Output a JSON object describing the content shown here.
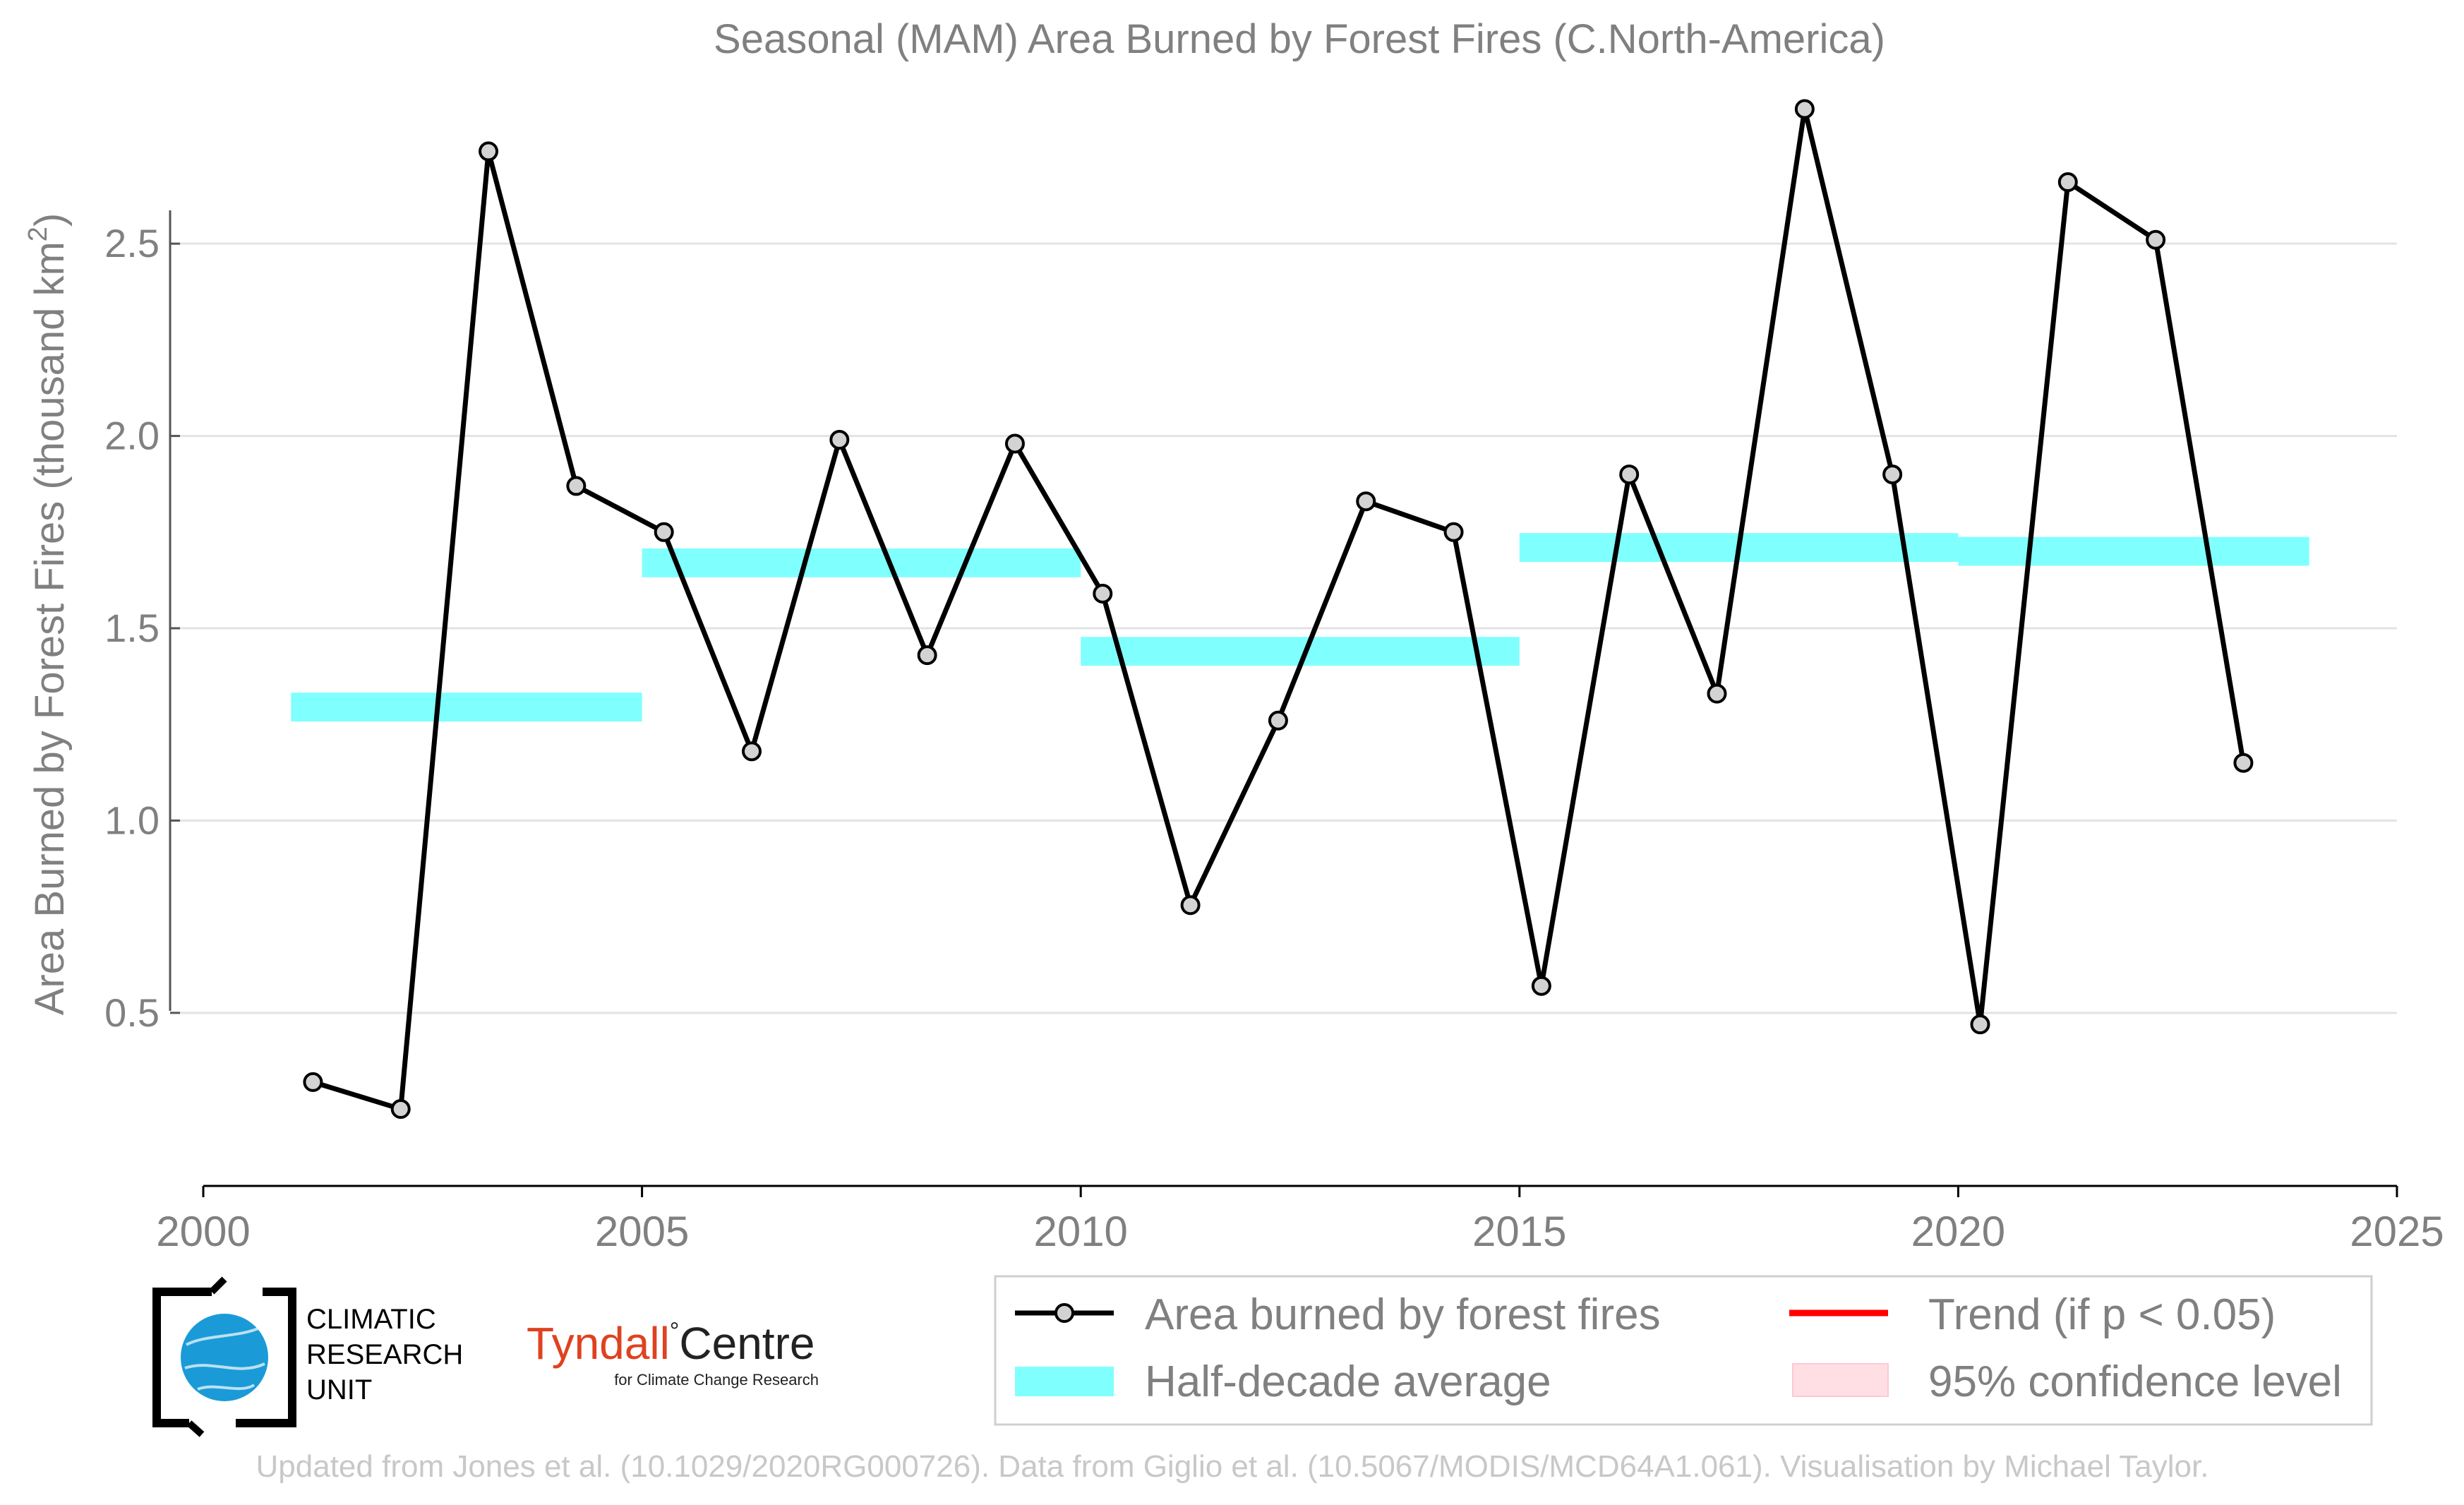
{
  "chart_data": {
    "type": "line",
    "title": "Seasonal (MAM) Area Burned by Forest Fires (C.North-America)",
    "ylabel": "Area Burned by Forest Fires (thousand km",
    "ylabel_sup": "2",
    "ylabel_close": ")",
    "xlim": [
      2000,
      2025
    ],
    "ylim": [
      0.05,
      2.95
    ],
    "x_ticks": [
      "2000",
      "2005",
      "2010",
      "2015",
      "2020",
      "2025"
    ],
    "y_ticks": [
      "0.5",
      "1.0",
      "1.5",
      "2.0",
      "2.5"
    ],
    "grid": "horizontal",
    "series": [
      {
        "name": "Area burned by forest fires",
        "color": "#000000",
        "x": [
          2001.25,
          2002.25,
          2003.25,
          2004.25,
          2005.25,
          2006.25,
          2007.25,
          2008.25,
          2009.25,
          2010.25,
          2011.25,
          2012.25,
          2013.25,
          2014.25,
          2015.25,
          2016.25,
          2017.25,
          2018.25,
          2019.25,
          2020.25,
          2021.25,
          2022.25,
          2023.25
        ],
        "values": [
          0.32,
          0.25,
          2.74,
          1.87,
          1.75,
          1.18,
          1.99,
          1.43,
          1.98,
          1.59,
          0.78,
          1.26,
          1.83,
          1.75,
          0.57,
          1.9,
          1.33,
          2.85,
          1.9,
          0.47,
          2.66,
          2.51,
          1.15
        ]
      }
    ],
    "half_decade_average": {
      "name": "Half-decade average",
      "color": "#80ffff",
      "segments": [
        {
          "x0": 2001,
          "x1": 2005,
          "value": 1.295
        },
        {
          "x0": 2005,
          "x1": 2010,
          "value": 1.67
        },
        {
          "x0": 2010,
          "x1": 2015,
          "value": 1.44
        },
        {
          "x0": 2015,
          "x1": 2020,
          "value": 1.71
        },
        {
          "x0": 2020,
          "x1": 2024,
          "value": 1.7
        }
      ]
    },
    "legend": {
      "position": "bottom-right",
      "entries": [
        {
          "label": "Area burned by forest fires",
          "symbol": "line-marker",
          "color": "#000000"
        },
        {
          "label": "Trend (if p < 0.05)",
          "symbol": "line",
          "color": "#ff0000"
        },
        {
          "label": "Half-decade average",
          "symbol": "band",
          "color": "#80ffff"
        },
        {
          "label": "95% confidence level",
          "symbol": "band",
          "color": "#ffdfe3"
        }
      ]
    }
  },
  "logos": {
    "cru": [
      "CLIMATIC",
      "RESEARCH",
      "UNIT"
    ],
    "tyndall_main": "Tyndall",
    "tyndall_centre": "Centre",
    "tyndall_sub": "for Climate Change Research"
  },
  "credit": "Updated from Jones et al. (10.1029/2020RG000726). Data from Giglio et al. (10.5067/MODIS/MCD64A1.061). Visualisation by Michael Taylor."
}
